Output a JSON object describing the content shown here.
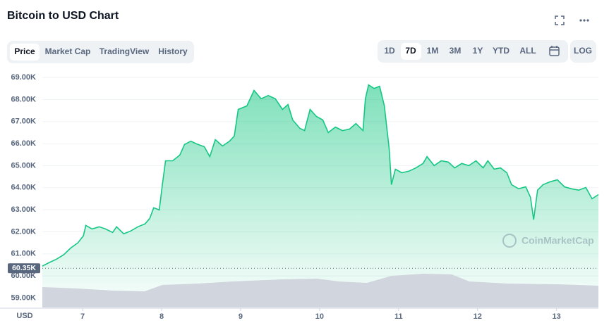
{
  "header": {
    "title": "Bitcoin to USD Chart"
  },
  "tabs": [
    "Price",
    "Market Cap",
    "TradingView",
    "History"
  ],
  "ranges": [
    "1D",
    "7D",
    "1M",
    "3M",
    "1Y",
    "YTD",
    "ALL"
  ],
  "log_button": "LOG",
  "watermark": "CoinMarketCap",
  "chart_data": {
    "type": "area",
    "currency_label": "USD",
    "x": [
      6.49,
      6.58,
      6.67,
      6.76,
      6.85,
      6.94,
      7.01,
      7.04,
      7.12,
      7.21,
      7.29,
      7.38,
      7.43,
      7.52,
      7.61,
      7.7,
      7.79,
      7.85,
      7.9,
      7.97,
      8.01,
      8.05,
      8.14,
      8.23,
      8.29,
      8.37,
      8.46,
      8.54,
      8.61,
      8.68,
      8.77,
      8.86,
      8.92,
      8.97,
      9.08,
      9.17,
      9.26,
      9.35,
      9.44,
      9.53,
      9.6,
      9.66,
      9.75,
      9.81,
      9.88,
      9.96,
      10.04,
      10.11,
      10.2,
      10.29,
      10.38,
      10.46,
      10.55,
      10.58,
      10.62,
      10.69,
      10.76,
      10.82,
      10.85,
      10.88,
      10.91,
      10.96,
      11.04,
      11.13,
      11.22,
      11.31,
      11.36,
      11.45,
      11.54,
      11.63,
      11.71,
      11.8,
      11.89,
      11.98,
      12.07,
      12.13,
      12.21,
      12.29,
      12.37,
      12.43,
      12.52,
      12.61,
      12.67,
      12.71,
      12.76,
      12.83,
      12.92,
      13.01,
      13.1,
      13.19,
      13.28,
      13.37,
      13.45,
      13.53
    ],
    "series": [
      {
        "color": "#16c784",
        "values": [
          60.45,
          60.61,
          60.76,
          60.96,
          61.27,
          61.5,
          61.82,
          62.29,
          62.13,
          62.23,
          62.13,
          61.97,
          62.23,
          61.91,
          62.04,
          62.23,
          62.36,
          62.61,
          63.09,
          62.99,
          64.14,
          65.22,
          65.22,
          65.48,
          65.96,
          66.11,
          65.96,
          65.86,
          65.41,
          66.18,
          65.89,
          66.11,
          66.34,
          67.55,
          67.71,
          68.41,
          68.03,
          68.18,
          68.03,
          67.55,
          67.77,
          67.07,
          66.69,
          66.59,
          67.55,
          67.23,
          67.07,
          66.5,
          66.75,
          66.59,
          66.66,
          66.91,
          66.59,
          68.03,
          68.66,
          68.5,
          68.6,
          67.71,
          66.75,
          65.8,
          64.14,
          64.84,
          64.68,
          64.75,
          64.9,
          65.1,
          65.41,
          65.0,
          65.22,
          65.16,
          64.9,
          65.1,
          65.0,
          65.22,
          64.9,
          65.22,
          64.84,
          64.9,
          64.68,
          64.14,
          63.95,
          64.04,
          63.57,
          62.55,
          63.89,
          64.14,
          64.27,
          64.36,
          64.04,
          63.95,
          63.89,
          64.01,
          63.5,
          63.69
        ]
      }
    ],
    "reference_line": {
      "value": 60.35,
      "label": "60.35K"
    },
    "xlim": [
      6.49,
      13.53
    ],
    "xticks": [
      7,
      8,
      9,
      10,
      11,
      12,
      13
    ],
    "ylim": [
      58.57,
      69.32
    ],
    "yticks": [
      {
        "value": 59,
        "label": "59.00K"
      },
      {
        "value": 60,
        "label": "60.00K"
      },
      {
        "value": 61,
        "label": "61.00K"
      },
      {
        "value": 62,
        "label": "62.00K"
      },
      {
        "value": 63,
        "label": "63.00K"
      },
      {
        "value": 64,
        "label": "64.00K"
      },
      {
        "value": 65,
        "label": "65.00K"
      },
      {
        "value": 66,
        "label": "66.00K"
      },
      {
        "value": 67,
        "label": "67.00K"
      },
      {
        "value": 68,
        "label": "68.00K"
      },
      {
        "value": 69,
        "label": "69.00K"
      }
    ],
    "grid": true
  }
}
